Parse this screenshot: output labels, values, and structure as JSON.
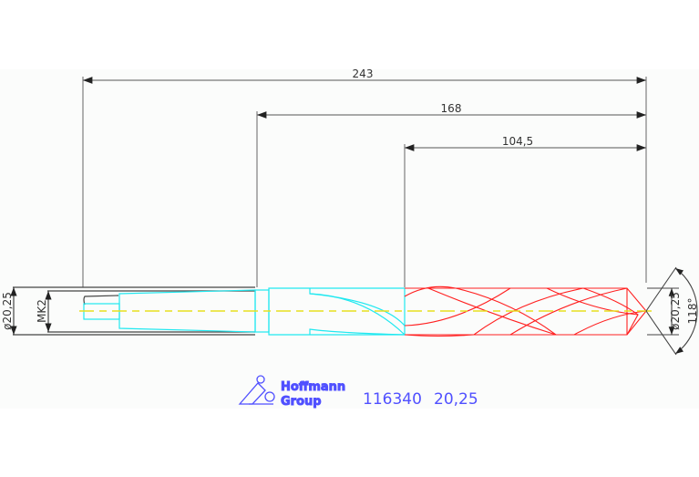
{
  "dimensions": {
    "overall_length": "243",
    "shank_to_tip": "168",
    "flute_length": "104,5",
    "shank_diameter": "ø20,25",
    "taper": "MK2",
    "tip_diameter": "ø20,25",
    "point_angle": "118°"
  },
  "logo": {
    "line1": "Hoffmann",
    "line2": "Group"
  },
  "part": {
    "number": "116340",
    "size": "20,25"
  },
  "colors": {
    "flute": "#ff2020",
    "body": "#20e8f0",
    "centerline": "#e8e020",
    "dimension": "#555555",
    "text": "#5050ff"
  }
}
